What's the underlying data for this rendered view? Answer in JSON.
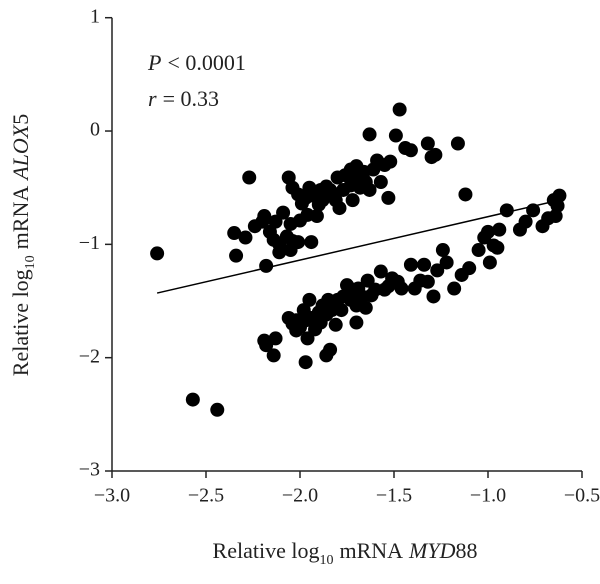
{
  "chart_data": {
    "type": "scatter",
    "annotations": [
      [
        "P",
        "< 0.0001"
      ],
      [
        "r",
        "= 0.33"
      ]
    ],
    "xlabel": [
      "Relative log",
      "10",
      "mRNA",
      "MYD",
      "88"
    ],
    "ylabel": [
      "Relative log",
      "10",
      "mRNA",
      "ALOX",
      "5"
    ],
    "xlim": [
      -3,
      -0.5
    ],
    "ylim": [
      -3,
      1
    ],
    "xticks": [
      {
        "value": -3,
        "label": "−3.0"
      },
      {
        "value": -2.5,
        "label": "−2.5"
      },
      {
        "value": -2,
        "label": "−2.0"
      },
      {
        "value": -1.5,
        "label": "−1.5"
      },
      {
        "value": -1,
        "label": "−1.0"
      },
      {
        "value": -0.5,
        "label": "−0.5"
      }
    ],
    "yticks": [
      1,
      0,
      {
        "value": -1,
        "label": "−1"
      },
      {
        "value": -2,
        "label": "−2"
      },
      {
        "value": -3,
        "label": "−3"
      }
    ],
    "color": "#000000",
    "fit_line": {
      "x": [
        -2.76,
        -0.62
      ],
      "y": [
        -1.43,
        -0.61
      ]
    },
    "x": [
      -2.76,
      -2.27,
      -2.35,
      -2.34,
      -2.29,
      -2.24,
      -2.2,
      -2.19,
      -2.16,
      -2.14,
      -2.13,
      -2.11,
      -2.09,
      -2.07,
      -2.05,
      -2.04,
      -2.01,
      -2.0,
      -2.18,
      -2.06,
      -2.04,
      -2.01,
      -1.97,
      -1.96,
      -1.95,
      -1.93,
      -1.9,
      -1.89,
      -1.88,
      -1.86,
      -1.84,
      -1.82,
      -1.8,
      -1.79,
      -1.77,
      -1.76,
      -1.73,
      -1.72,
      -1.7,
      -1.68,
      -1.66,
      -1.65,
      -1.63,
      -1.61,
      -1.59,
      -1.57,
      -1.55,
      -1.53,
      -1.52,
      -1.49,
      -1.47,
      -1.44,
      -1.41,
      -1.32,
      -1.3,
      -1.28,
      -1.16,
      -1.12,
      -1.63,
      -1.7,
      -1.73,
      -1.81,
      -1.91,
      -1.94,
      -1.99,
      -2.05,
      -2.11,
      -2.19,
      -2.18,
      -2.14,
      -2.13,
      -2.06,
      -2.04,
      -2.02,
      -2.0,
      -1.98,
      -1.97,
      -1.96,
      -1.95,
      -1.94,
      -1.92,
      -1.9,
      -1.89,
      -1.88,
      -1.86,
      -1.85,
      -1.83,
      -1.81,
      -1.8,
      -1.78,
      -1.77,
      -1.75,
      -1.73,
      -1.72,
      -1.7,
      -1.69,
      -1.67,
      -1.65,
      -1.64,
      -1.62,
      -1.6,
      -1.57,
      -1.55,
      -1.53,
      -1.51,
      -1.48,
      -1.46,
      -1.41,
      -1.39,
      -1.36,
      -1.34,
      -1.32,
      -1.29,
      -1.27,
      -1.24,
      -1.22,
      -1.18,
      -1.14,
      -1.1,
      -1.05,
      -1.02,
      -1.0,
      -0.99,
      -0.97,
      -0.95,
      -0.94,
      -0.9,
      -0.83,
      -0.8,
      -0.76,
      -0.71,
      -0.68,
      -0.65,
      -0.64,
      -0.63,
      -0.62,
      -1.7,
      -1.84,
      -1.97,
      -1.86,
      -2.02,
      -2.57,
      -2.44
    ],
    "values": [
      -1.08,
      -0.41,
      -0.9,
      -1.1,
      -0.94,
      -0.84,
      -0.8,
      -0.75,
      -0.89,
      -0.96,
      -0.8,
      -1.0,
      -0.72,
      -0.93,
      -0.82,
      -0.97,
      -0.98,
      -0.79,
      -1.19,
      -0.41,
      -0.5,
      -0.56,
      -0.59,
      -0.74,
      -0.5,
      -0.57,
      -0.65,
      -0.52,
      -0.61,
      -0.49,
      -0.52,
      -0.57,
      -0.41,
      -0.68,
      -0.52,
      -0.39,
      -0.48,
      -0.61,
      -0.41,
      -0.5,
      -0.36,
      -0.45,
      -0.52,
      -0.34,
      -0.26,
      -0.45,
      -0.3,
      -0.59,
      -0.27,
      -0.04,
      0.19,
      -0.15,
      -0.17,
      -0.11,
      -0.23,
      -0.21,
      -0.11,
      -0.56,
      -0.03,
      -0.31,
      -0.34,
      -0.61,
      -0.75,
      -0.98,
      -0.64,
      -1.05,
      -1.07,
      -1.85,
      -1.89,
      -1.98,
      -1.83,
      -1.65,
      -1.7,
      -1.76,
      -1.73,
      -1.58,
      -1.67,
      -1.83,
      -1.49,
      -1.65,
      -1.75,
      -1.6,
      -1.69,
      -1.54,
      -1.62,
      -1.49,
      -1.58,
      -1.71,
      -1.49,
      -1.58,
      -1.46,
      -1.36,
      -1.49,
      -1.4,
      -1.54,
      -1.39,
      -1.46,
      -1.56,
      -1.32,
      -1.45,
      -1.4,
      -1.24,
      -1.4,
      -1.37,
      -1.3,
      -1.33,
      -1.39,
      -1.18,
      -1.39,
      -1.32,
      -1.18,
      -1.33,
      -1.46,
      -1.23,
      -1.05,
      -1.16,
      -1.39,
      -1.27,
      -1.21,
      -1.05,
      -0.94,
      -0.89,
      -1.16,
      -1.01,
      -1.03,
      -0.87,
      -0.7,
      -0.87,
      -0.8,
      -0.7,
      -0.84,
      -0.77,
      -0.61,
      -0.75,
      -0.66,
      -0.57,
      -1.69,
      -1.93,
      -2.04,
      -1.98,
      -1.67,
      -2.37,
      -2.46
    ]
  }
}
